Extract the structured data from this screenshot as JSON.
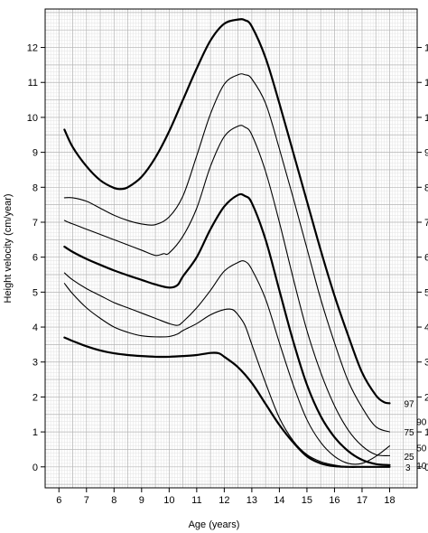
{
  "chart_data": {
    "type": "line",
    "xlabel": "Age (years)",
    "ylabel": "Height velocity (cm/year)",
    "xlim": [
      5.5,
      19
    ],
    "ylim": [
      -0.6,
      13.1
    ],
    "x_ticks": [
      6,
      7,
      8,
      9,
      10,
      11,
      12,
      13,
      14,
      15,
      16,
      17,
      18
    ],
    "y_ticks": [
      0,
      1,
      2,
      3,
      4,
      5,
      6,
      7,
      8,
      9,
      10,
      11,
      12
    ],
    "x_tick_labels": [
      "6",
      "7",
      "8",
      "9",
      "10",
      "11",
      "12",
      "13",
      "14",
      "15",
      "16",
      "17",
      "18"
    ],
    "y_tick_labels": [
      "0",
      "1",
      "2",
      "3",
      "4",
      "5",
      "6",
      "7",
      "8",
      "9",
      "10",
      "11",
      "12"
    ],
    "grid": true,
    "series": [
      {
        "name": "97",
        "bold": true,
        "x": [
          6.2,
          6.5,
          7,
          7.5,
          8,
          8.25,
          8.5,
          9,
          9.5,
          10,
          10.5,
          11,
          11.5,
          12,
          12.5,
          12.75,
          13,
          13.5,
          14,
          14.5,
          15,
          15.5,
          16,
          16.5,
          17,
          17.5,
          17.8,
          18
        ],
        "y": [
          9.65,
          9.15,
          8.6,
          8.2,
          7.98,
          7.95,
          8.0,
          8.3,
          8.85,
          9.6,
          10.5,
          11.4,
          12.2,
          12.68,
          12.8,
          12.78,
          12.6,
          11.7,
          10.4,
          9.0,
          7.6,
          6.2,
          4.9,
          3.75,
          2.7,
          2.05,
          1.85,
          1.82
        ]
      },
      {
        "name": "90",
        "bold": false,
        "x": [
          6.2,
          6.5,
          7,
          7.5,
          8,
          8.5,
          9,
          9.5,
          10,
          10.5,
          11,
          11.5,
          12,
          12.5,
          12.75,
          13,
          13.5,
          14,
          14.5,
          15,
          15.5,
          16,
          16.5,
          17,
          17.5,
          18
        ],
        "y": [
          7.7,
          7.7,
          7.6,
          7.4,
          7.2,
          7.05,
          6.95,
          6.93,
          7.15,
          7.75,
          8.9,
          10.1,
          10.95,
          11.22,
          11.22,
          11.1,
          10.4,
          9.1,
          7.7,
          6.25,
          4.8,
          3.55,
          2.45,
          1.7,
          1.15,
          1.0
        ]
      },
      {
        "name": "75",
        "bold": false,
        "x": [
          6.2,
          6.5,
          7,
          7.5,
          8,
          8.5,
          9,
          9.5,
          9.8,
          10,
          10.5,
          11,
          11.5,
          12,
          12.5,
          12.75,
          13,
          13.5,
          14,
          14.5,
          15,
          15.5,
          16,
          16.5,
          17,
          17.5,
          18
        ],
        "y": [
          7.05,
          6.95,
          6.8,
          6.65,
          6.5,
          6.35,
          6.2,
          6.05,
          6.1,
          6.12,
          6.6,
          7.4,
          8.6,
          9.45,
          9.75,
          9.72,
          9.5,
          8.45,
          7.0,
          5.4,
          3.9,
          2.7,
          1.75,
          1.05,
          0.6,
          0.35,
          0.32
        ]
      },
      {
        "name": "50",
        "bold": true,
        "x": [
          6.2,
          6.5,
          7,
          7.5,
          8,
          8.5,
          9,
          9.5,
          10,
          10.3,
          10.5,
          11,
          11.5,
          12,
          12.5,
          12.75,
          13,
          13.5,
          14,
          14.5,
          15,
          15.5,
          16,
          16.5,
          17,
          17.5,
          18
        ],
        "y": [
          6.3,
          6.15,
          5.95,
          5.78,
          5.62,
          5.48,
          5.35,
          5.22,
          5.13,
          5.2,
          5.45,
          6.0,
          6.8,
          7.45,
          7.78,
          7.75,
          7.55,
          6.5,
          5.05,
          3.6,
          2.35,
          1.45,
          0.85,
          0.45,
          0.2,
          0.08,
          0.05
        ]
      },
      {
        "name": "25",
        "bold": false,
        "x": [
          6.2,
          6.5,
          7,
          7.5,
          8,
          8.5,
          9,
          9.5,
          10,
          10.3,
          10.5,
          11,
          11.5,
          12,
          12.5,
          12.75,
          13,
          13.5,
          14,
          14.5,
          15,
          15.5,
          16,
          16.5,
          17,
          17.5,
          18
        ],
        "y": [
          5.55,
          5.35,
          5.1,
          4.9,
          4.7,
          4.55,
          4.4,
          4.25,
          4.1,
          4.05,
          4.15,
          4.55,
          5.05,
          5.6,
          5.85,
          5.88,
          5.65,
          4.8,
          3.55,
          2.35,
          1.35,
          0.7,
          0.3,
          0.1,
          0.1,
          0.3,
          0.6
        ]
      },
      {
        "name": "10",
        "bold": false,
        "x": [
          6.2,
          6.5,
          7,
          7.5,
          8,
          8.5,
          9,
          9.5,
          10,
          10.3,
          10.5,
          11,
          11.5,
          12,
          12.3,
          12.5,
          12.75,
          13,
          13.5,
          14,
          14.5,
          15,
          15.5,
          16,
          16.5,
          17,
          17.5,
          18
        ],
        "y": [
          5.25,
          4.95,
          4.55,
          4.25,
          4.0,
          3.85,
          3.75,
          3.72,
          3.73,
          3.8,
          3.9,
          4.1,
          4.35,
          4.5,
          4.5,
          4.35,
          4.05,
          3.5,
          2.4,
          1.4,
          0.75,
          0.35,
          0.15,
          0.05,
          0.0,
          0.0,
          0.0,
          0.0
        ]
      },
      {
        "name": "3",
        "bold": true,
        "x": [
          6.2,
          6.5,
          7,
          7.5,
          8,
          8.5,
          9,
          9.5,
          10,
          10.5,
          11,
          11.5,
          11.8,
          12,
          12.5,
          13,
          13.5,
          14,
          14.5,
          15,
          15.5,
          16,
          16.5,
          17,
          17.5,
          18
        ],
        "y": [
          3.7,
          3.6,
          3.45,
          3.33,
          3.25,
          3.2,
          3.17,
          3.15,
          3.15,
          3.17,
          3.2,
          3.26,
          3.25,
          3.15,
          2.85,
          2.4,
          1.8,
          1.2,
          0.7,
          0.3,
          0.1,
          0.02,
          0.0,
          0.0,
          0.0,
          0.0
        ]
      }
    ],
    "percentile_labels": [
      {
        "text": "97",
        "x": 18.0,
        "y": 1.82
      },
      {
        "text": "90",
        "x": 18.45,
        "y": 1.3
      },
      {
        "text": "75",
        "x": 18.0,
        "y": 1.0
      },
      {
        "text": "50",
        "x": 18.45,
        "y": 0.55
      },
      {
        "text": "25",
        "x": 18.0,
        "y": 0.3
      },
      {
        "text": "10",
        "x": 18.45,
        "y": 0.05
      },
      {
        "text": "3",
        "x": 18.05,
        "y": 0.0
      }
    ]
  }
}
